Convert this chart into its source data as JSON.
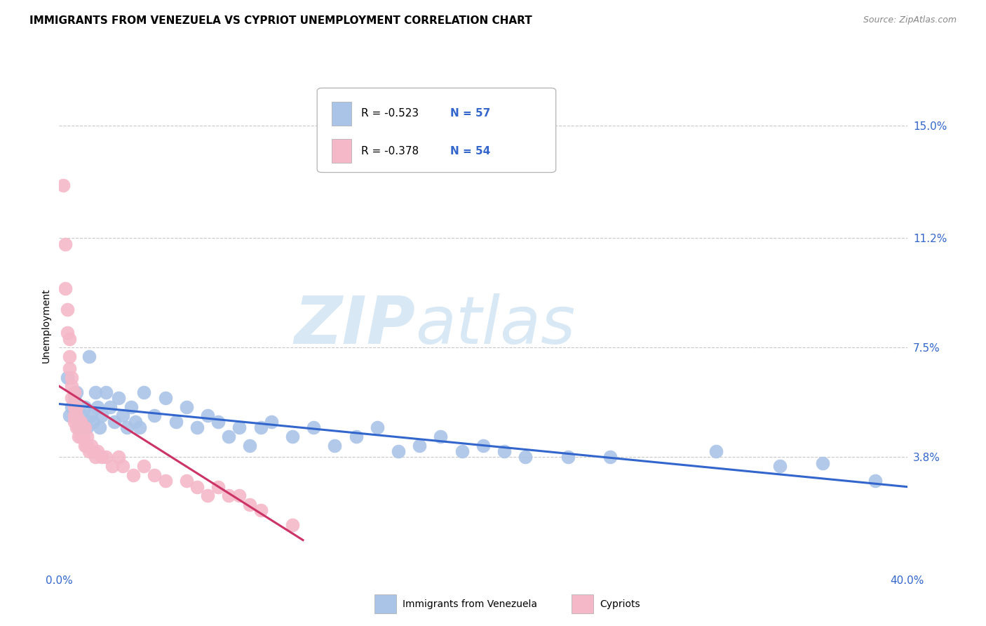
{
  "title": "IMMIGRANTS FROM VENEZUELA VS CYPRIOT UNEMPLOYMENT CORRELATION CHART",
  "source": "Source: ZipAtlas.com",
  "xlabel_blue": "Immigrants from Venezuela",
  "xlabel_pink": "Cypriots",
  "ylabel": "Unemployment",
  "xlim": [
    0.0,
    0.4
  ],
  "ylim": [
    0.0,
    0.165
  ],
  "yticks": [
    0.038,
    0.075,
    0.112,
    0.15
  ],
  "ytick_labels": [
    "3.8%",
    "7.5%",
    "11.2%",
    "15.0%"
  ],
  "xticks": [
    0.0,
    0.1,
    0.2,
    0.3,
    0.4
  ],
  "xtick_labels": [
    "0.0%",
    "",
    "",
    "",
    "40.0%"
  ],
  "legend_r_blue": "R = -0.523",
  "legend_n_blue": "N = 57",
  "legend_r_pink": "R = -0.378",
  "legend_n_pink": "N = 54",
  "blue_scatter_x": [
    0.004,
    0.005,
    0.006,
    0.007,
    0.008,
    0.009,
    0.01,
    0.011,
    0.012,
    0.013,
    0.014,
    0.015,
    0.016,
    0.017,
    0.018,
    0.019,
    0.02,
    0.022,
    0.024,
    0.026,
    0.028,
    0.03,
    0.032,
    0.034,
    0.036,
    0.038,
    0.04,
    0.045,
    0.05,
    0.055,
    0.06,
    0.065,
    0.07,
    0.075,
    0.08,
    0.085,
    0.09,
    0.095,
    0.1,
    0.11,
    0.12,
    0.13,
    0.14,
    0.15,
    0.16,
    0.17,
    0.18,
    0.19,
    0.2,
    0.21,
    0.22,
    0.24,
    0.26,
    0.31,
    0.34,
    0.36,
    0.385
  ],
  "blue_scatter_y": [
    0.065,
    0.052,
    0.055,
    0.058,
    0.06,
    0.048,
    0.05,
    0.052,
    0.055,
    0.048,
    0.072,
    0.052,
    0.05,
    0.06,
    0.055,
    0.048,
    0.052,
    0.06,
    0.055,
    0.05,
    0.058,
    0.052,
    0.048,
    0.055,
    0.05,
    0.048,
    0.06,
    0.052,
    0.058,
    0.05,
    0.055,
    0.048,
    0.052,
    0.05,
    0.045,
    0.048,
    0.042,
    0.048,
    0.05,
    0.045,
    0.048,
    0.042,
    0.045,
    0.048,
    0.04,
    0.042,
    0.045,
    0.04,
    0.042,
    0.04,
    0.038,
    0.038,
    0.038,
    0.04,
    0.035,
    0.036,
    0.03
  ],
  "pink_scatter_x": [
    0.002,
    0.003,
    0.003,
    0.004,
    0.004,
    0.005,
    0.005,
    0.005,
    0.006,
    0.006,
    0.006,
    0.007,
    0.007,
    0.007,
    0.007,
    0.008,
    0.008,
    0.008,
    0.008,
    0.009,
    0.009,
    0.009,
    0.01,
    0.01,
    0.01,
    0.011,
    0.011,
    0.012,
    0.012,
    0.013,
    0.013,
    0.014,
    0.015,
    0.016,
    0.017,
    0.018,
    0.02,
    0.022,
    0.025,
    0.028,
    0.03,
    0.035,
    0.04,
    0.045,
    0.05,
    0.06,
    0.065,
    0.07,
    0.075,
    0.08,
    0.085,
    0.09,
    0.095,
    0.11
  ],
  "pink_scatter_y": [
    0.13,
    0.11,
    0.095,
    0.088,
    0.08,
    0.078,
    0.072,
    0.068,
    0.065,
    0.062,
    0.058,
    0.06,
    0.055,
    0.052,
    0.05,
    0.055,
    0.052,
    0.05,
    0.048,
    0.05,
    0.048,
    0.045,
    0.05,
    0.048,
    0.045,
    0.048,
    0.045,
    0.048,
    0.042,
    0.045,
    0.042,
    0.04,
    0.042,
    0.04,
    0.038,
    0.04,
    0.038,
    0.038,
    0.035,
    0.038,
    0.035,
    0.032,
    0.035,
    0.032,
    0.03,
    0.03,
    0.028,
    0.025,
    0.028,
    0.025,
    0.025,
    0.022,
    0.02,
    0.015
  ],
  "blue_line_x": [
    0.0,
    0.4
  ],
  "blue_line_y": [
    0.056,
    0.028
  ],
  "pink_line_x": [
    0.0,
    0.115
  ],
  "pink_line_y": [
    0.062,
    0.01
  ],
  "blue_dot_color": "#aac4e8",
  "pink_dot_color": "#f4b8c8",
  "blue_line_color": "#3366cc",
  "pink_line_color": "#cc3366",
  "grid_color": "#c8c8c8",
  "background_color": "#ffffff",
  "title_fontsize": 11,
  "axis_label_fontsize": 10,
  "tick_fontsize": 11,
  "watermark_zip": "ZIP",
  "watermark_atlas": "atlas",
  "watermark_color": "#d8e8f5"
}
